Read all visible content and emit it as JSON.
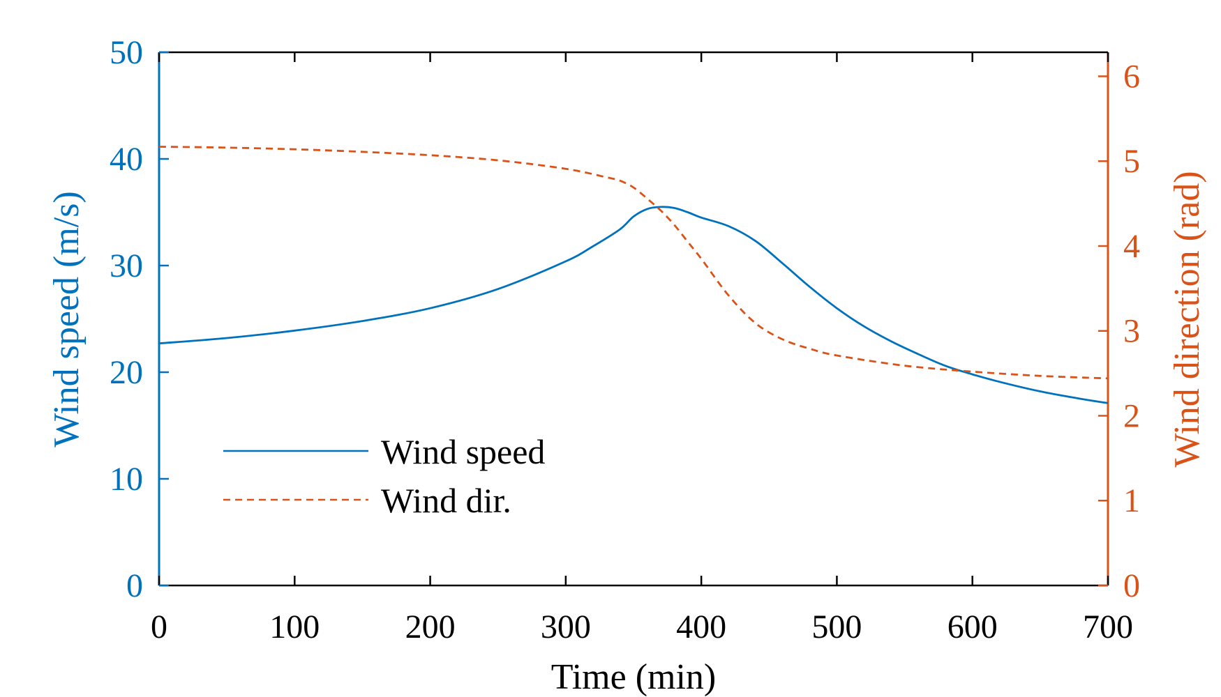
{
  "chart_data": {
    "type": "line",
    "title": "",
    "xlabel": "Time (min)",
    "ylabel_left": "Wind speed (m/s)",
    "ylabel_right": "Wind direction (rad)",
    "xlim": [
      0,
      700
    ],
    "ylim_left": [
      0,
      50
    ],
    "ylim_right": [
      0,
      6.2832
    ],
    "x_ticks": [
      0,
      100,
      200,
      300,
      400,
      500,
      600,
      700
    ],
    "y_left_ticks": [
      0,
      10,
      20,
      30,
      40,
      50
    ],
    "y_right_ticks": [
      0,
      1,
      2,
      3,
      4,
      5,
      6
    ],
    "grid": false,
    "legend_position": "lower-left",
    "colors": {
      "speed": "#0072BD",
      "direction": "#D95319",
      "axis": "#000000"
    },
    "series": [
      {
        "name": "Wind speed",
        "axis": "left",
        "style": "solid",
        "x": [
          0,
          50,
          100,
          150,
          200,
          250,
          300,
          320,
          340,
          350,
          360,
          370,
          380,
          390,
          400,
          420,
          440,
          460,
          480,
          500,
          520,
          540,
          560,
          580,
          600,
          620,
          650,
          680,
          700
        ],
        "y": [
          22.7,
          23.2,
          23.9,
          24.8,
          26.0,
          27.8,
          30.4,
          31.8,
          33.4,
          34.6,
          35.3,
          35.5,
          35.4,
          35.0,
          34.5,
          33.7,
          32.3,
          30.2,
          28.0,
          26.0,
          24.3,
          22.9,
          21.7,
          20.6,
          19.8,
          19.1,
          18.2,
          17.5,
          17.1
        ]
      },
      {
        "name": "Wind dir.",
        "axis": "right",
        "style": "dashed",
        "x": [
          0,
          50,
          100,
          150,
          200,
          250,
          300,
          330,
          340,
          350,
          360,
          370,
          380,
          390,
          400,
          420,
          440,
          460,
          480,
          500,
          550,
          600,
          650,
          700
        ],
        "y": [
          5.17,
          5.16,
          5.14,
          5.11,
          5.07,
          5.01,
          4.91,
          4.81,
          4.77,
          4.69,
          4.56,
          4.42,
          4.25,
          4.05,
          3.85,
          3.42,
          3.09,
          2.9,
          2.79,
          2.71,
          2.59,
          2.52,
          2.47,
          2.44
        ]
      }
    ]
  }
}
